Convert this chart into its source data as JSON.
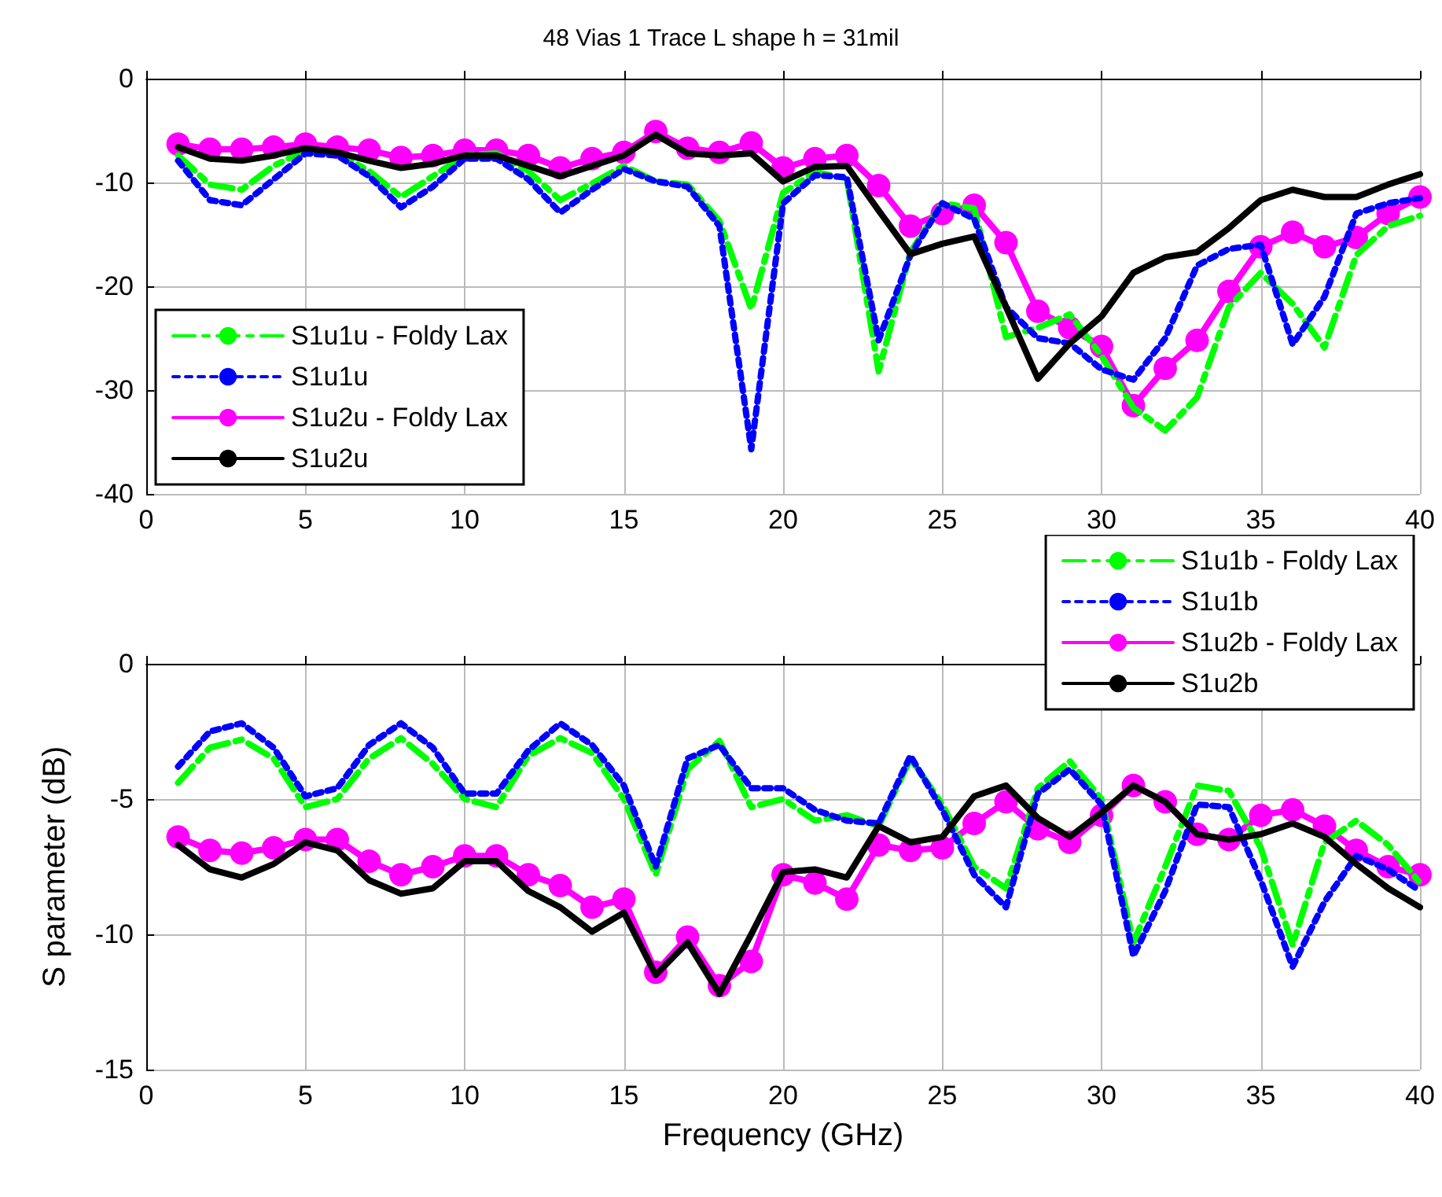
{
  "chart_data": [
    {
      "type": "line",
      "title": "48 Vias 1 Trace L shape h = 31mil",
      "x": [
        1,
        2,
        3,
        4,
        5,
        6,
        7,
        8,
        9,
        10,
        11,
        12,
        13,
        14,
        15,
        16,
        17,
        18,
        19,
        20,
        21,
        22,
        23,
        24,
        25,
        26,
        27,
        28,
        29,
        30,
        31,
        32,
        33,
        34,
        35,
        36,
        37,
        38,
        39,
        40
      ],
      "xlim": [
        0,
        40
      ],
      "xticks": [
        0,
        5,
        10,
        15,
        20,
        25,
        30,
        35,
        40
      ],
      "ylim": [
        -40,
        0
      ],
      "yticks": [
        -40,
        -30,
        -20,
        -10,
        0
      ],
      "grid": true,
      "legend": "bottom left",
      "series": [
        {
          "name": "S1u1u - Foldy Lax",
          "color": "#00ff00",
          "line_style": "dashed",
          "marker": "none",
          "values": [
            -7.4,
            -10.2,
            -10.7,
            -8.4,
            -6.9,
            -7.2,
            -8.9,
            -11.4,
            -9.4,
            -7.4,
            -7.2,
            -8.9,
            -11.7,
            -10.1,
            -8.4,
            -9.9,
            -10.2,
            -13.7,
            -22.2,
            -11,
            -9,
            -9.6,
            -28.2,
            -16.7,
            -12,
            -12.5,
            -24.9,
            -24,
            -22.7,
            -26.7,
            -31.7,
            -33.9,
            -30.7,
            -22,
            -18.7,
            -21.7,
            -25.9,
            -17,
            -14.2,
            -13.2
          ]
        },
        {
          "name": "S1u1u",
          "color": "#0000ff",
          "line_style": "dotted",
          "marker": "none",
          "values": [
            -7.9,
            -11.7,
            -12.2,
            -9.7,
            -7.2,
            -7.4,
            -9.4,
            -12.4,
            -10.4,
            -7.7,
            -7.7,
            -9.7,
            -12.9,
            -10.7,
            -8.7,
            -9.9,
            -10.4,
            -14.2,
            -35.7,
            -12,
            -9.3,
            -9.5,
            -25.2,
            -17,
            -12,
            -13.5,
            -22,
            -25,
            -25.5,
            -28,
            -29,
            -25,
            -18,
            -16.4,
            -16,
            -25.6,
            -21,
            -13,
            -12,
            -11.5
          ]
        },
        {
          "name": "S1u2u - Foldy Lax",
          "color": "#ff00ff",
          "line_style": "solid",
          "marker": "circle",
          "values": [
            -6.3,
            -6.8,
            -6.8,
            -6.6,
            -6.3,
            -6.6,
            -6.9,
            -7.6,
            -7.4,
            -6.9,
            -6.9,
            -7.4,
            -8.6,
            -7.7,
            -7.1,
            -5.1,
            -6.7,
            -7.1,
            -6.2,
            -8.6,
            -7.7,
            -7.4,
            -10.3,
            -14.2,
            -13,
            -12.2,
            -15.8,
            -22.4,
            -24,
            -25.8,
            -31.5,
            -27.9,
            -25.2,
            -20.5,
            -16.2,
            -14.8,
            -16.2,
            -15.3,
            -13,
            -11.4
          ]
        },
        {
          "name": "S1u2u",
          "color": "#000000",
          "line_style": "solid",
          "marker": "none",
          "values": [
            -6.6,
            -7.7,
            -7.9,
            -7.4,
            -6.7,
            -7.1,
            -7.9,
            -8.6,
            -8.2,
            -7.4,
            -7.4,
            -8.4,
            -9.4,
            -8.4,
            -7.4,
            -5.4,
            -7.2,
            -7.4,
            -7.2,
            -9.9,
            -8.5,
            -8.4,
            -12.7,
            -16.9,
            -15.9,
            -15.2,
            -22,
            -28.9,
            -25.5,
            -22.9,
            -18.7,
            -17.2,
            -16.7,
            -14.4,
            -11.7,
            -10.7,
            -11.4,
            -11.4,
            -10.2,
            -9.2
          ]
        }
      ]
    },
    {
      "type": "line",
      "xlabel": "Frequency (GHz)",
      "ylabel": "S parameter (dB)",
      "x": [
        1,
        2,
        3,
        4,
        5,
        6,
        7,
        8,
        9,
        10,
        11,
        12,
        13,
        14,
        15,
        16,
        17,
        18,
        19,
        20,
        21,
        22,
        23,
        24,
        25,
        26,
        27,
        28,
        29,
        30,
        31,
        32,
        33,
        34,
        35,
        36,
        37,
        38,
        39,
        40
      ],
      "xlim": [
        0,
        40
      ],
      "xticks": [
        0,
        5,
        10,
        15,
        20,
        25,
        30,
        35,
        40
      ],
      "ylim": [
        -15,
        0
      ],
      "yticks": [
        -15,
        -10,
        -5,
        0
      ],
      "grid": true,
      "legend": "top right",
      "series": [
        {
          "name": "S1u1b - Foldy Lax",
          "color": "#00ff00",
          "line_style": "dashed",
          "marker": "none",
          "values": [
            -4.4,
            -3.1,
            -2.8,
            -3.5,
            -5.3,
            -5,
            -3.5,
            -2.75,
            -3.7,
            -5,
            -5.3,
            -3.4,
            -2.75,
            -3.3,
            -5,
            -7.8,
            -3.9,
            -2.85,
            -5.3,
            -5,
            -5.8,
            -5.6,
            -6,
            -3.5,
            -5.2,
            -7.5,
            -8.3,
            -4.6,
            -3.6,
            -5,
            -10.3,
            -7.5,
            -4.5,
            -4.7,
            -6.8,
            -10.4,
            -6.6,
            -5.8,
            -6.7,
            -8.1
          ]
        },
        {
          "name": "S1u1b",
          "color": "#0000ff",
          "line_style": "dotted",
          "marker": "none",
          "values": [
            -3.8,
            -2.5,
            -2.2,
            -3.1,
            -4.9,
            -4.6,
            -3,
            -2.2,
            -3.1,
            -4.8,
            -4.8,
            -3.2,
            -2.2,
            -3,
            -4.5,
            -7.5,
            -3.5,
            -3,
            -4.6,
            -4.6,
            -5.4,
            -5.8,
            -5.9,
            -3.4,
            -5.4,
            -7.8,
            -9,
            -4.8,
            -3.9,
            -5.2,
            -10.8,
            -8.4,
            -5.2,
            -5.3,
            -8,
            -11.2,
            -8.8,
            -7.1,
            -7.6,
            -8.4
          ]
        },
        {
          "name": "S1u2b - Foldy Lax",
          "color": "#ff00ff",
          "line_style": "solid",
          "marker": "circle",
          "values": [
            -6.4,
            -6.9,
            -7,
            -6.8,
            -6.5,
            -6.5,
            -7.3,
            -7.8,
            -7.5,
            -7.1,
            -7.1,
            -7.8,
            -8.2,
            -9,
            -8.7,
            -11.4,
            -10.1,
            -11.9,
            -11,
            -7.8,
            -8.1,
            -8.7,
            -6.7,
            -6.9,
            -6.8,
            -5.9,
            -5.1,
            -6.1,
            -6.6,
            -5.6,
            -4.5,
            -5.1,
            -6.3,
            -6.5,
            -5.6,
            -5.4,
            -6,
            -6.9,
            -7.5,
            -7.8
          ]
        },
        {
          "name": "S1u2b",
          "color": "#000000",
          "line_style": "solid",
          "marker": "none",
          "values": [
            -6.7,
            -7.6,
            -7.9,
            -7.4,
            -6.6,
            -6.9,
            -8,
            -8.5,
            -8.3,
            -7.3,
            -7.3,
            -8.4,
            -9,
            -9.9,
            -9.2,
            -11.5,
            -10.3,
            -12.2,
            -10,
            -7.7,
            -7.6,
            -7.9,
            -6,
            -6.6,
            -6.4,
            -4.9,
            -4.5,
            -5.7,
            -6.4,
            -5.5,
            -4.5,
            -5.1,
            -6.3,
            -6.5,
            -6.3,
            -5.9,
            -6.4,
            -7.4,
            -8.3,
            -9
          ]
        }
      ]
    }
  ]
}
